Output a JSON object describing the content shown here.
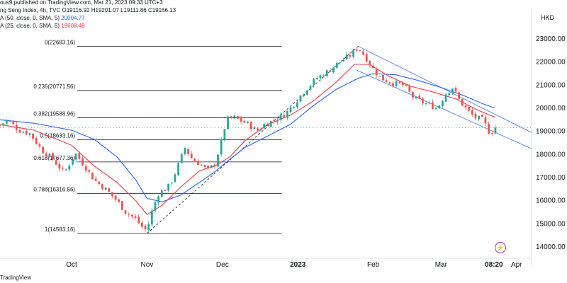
{
  "header": {
    "published": "ous9 published on TradingView.com, Mar 21, 2023 09:33 UTC+3",
    "symbol": "ng Seng Index, 4h, TVC",
    "ohlc": {
      "open": "O19116.92",
      "high": "H19201.07",
      "low": "L19111.86",
      "close": "C19166.13"
    },
    "ma1": {
      "label": "A (50, close, 0, SMA, 5)",
      "value": "20004.77",
      "color": "#2962ff"
    },
    "ma2": {
      "label": "A (25, close, 0, SMA, 5)",
      "value": "19608.48",
      "color": "#f23645"
    },
    "currency": "HKD",
    "brand": "TradingView",
    "bolt_icon": "lightning-bolt-icon"
  },
  "chart_data": {
    "type": "candlestick",
    "y_ticks": [
      "23000.00",
      "22000.00",
      "21000.00",
      "20000.00",
      "19000.00",
      "18000.00",
      "17000.00",
      "16000.00",
      "15000.00",
      "14000.00"
    ],
    "y_values": [
      23000,
      22000,
      21000,
      20000,
      19000,
      18000,
      17000,
      16000,
      15000,
      14000
    ],
    "ylim": [
      13600,
      23400
    ],
    "x_ticks": [
      "Oct",
      "Nov",
      "Dec",
      "2023",
      "Feb",
      "Mar",
      "08:20",
      "Apr"
    ],
    "x_time_index": [
      0.0,
      1.0,
      2.0,
      3.0,
      4.0,
      4.9,
      5.6,
      5.9
    ],
    "xlim_index": [
      -0.95,
      6.1
    ],
    "last_price": 19166.13,
    "fibonacci": [
      {
        "label": "0(22683.16)",
        "value": 22683.16
      },
      {
        "label": "0.236(20771.56)",
        "value": 20771.56
      },
      {
        "label": "0.382(19588.96)",
        "value": 19588.96
      },
      {
        "label": "0.5(18633.16)",
        "value": 18633.16
      },
      {
        "label": "0.618(17677.36)",
        "value": 17677.36
      },
      {
        "label": "0.786(16316.56)",
        "value": 16316.56
      },
      {
        "label": "1(14583.16)",
        "value": 14583.16
      }
    ],
    "fib_x_range_index": [
      0.0,
      2.6
    ],
    "series_close_path": [
      [
        -0.95,
        19250
      ],
      [
        -0.85,
        19500
      ],
      [
        -0.7,
        19050
      ],
      [
        -0.55,
        18900
      ],
      [
        -0.4,
        18200
      ],
      [
        -0.25,
        17800
      ],
      [
        -0.1,
        17200
      ],
      [
        0.05,
        18050
      ],
      [
        0.15,
        17600
      ],
      [
        0.3,
        16900
      ],
      [
        0.45,
        16500
      ],
      [
        0.6,
        16000
      ],
      [
        0.72,
        15500
      ],
      [
        0.85,
        15200
      ],
      [
        0.95,
        14800
      ],
      [
        1.0,
        14700
      ],
      [
        1.05,
        15400
      ],
      [
        1.15,
        16300
      ],
      [
        1.3,
        16650
      ],
      [
        1.4,
        17400
      ],
      [
        1.5,
        18300
      ],
      [
        1.6,
        17800
      ],
      [
        1.7,
        17600
      ],
      [
        1.8,
        17300
      ],
      [
        1.9,
        17600
      ],
      [
        2.0,
        18700
      ],
      [
        2.05,
        19500
      ],
      [
        2.15,
        19600
      ],
      [
        2.25,
        19450
      ],
      [
        2.35,
        19300
      ],
      [
        2.45,
        19000
      ],
      [
        2.55,
        19300
      ],
      [
        2.7,
        19500
      ],
      [
        2.85,
        19800
      ],
      [
        3.0,
        20400
      ],
      [
        3.1,
        20800
      ],
      [
        3.25,
        21300
      ],
      [
        3.4,
        21600
      ],
      [
        3.55,
        22000
      ],
      [
        3.7,
        22300
      ],
      [
        3.8,
        22650
      ],
      [
        3.9,
        22200
      ],
      [
        4.0,
        21700
      ],
      [
        4.1,
        21300
      ],
      [
        4.25,
        21100
      ],
      [
        4.4,
        21000
      ],
      [
        4.55,
        20400
      ],
      [
        4.7,
        20200
      ],
      [
        4.85,
        20000
      ],
      [
        4.95,
        20600
      ],
      [
        5.05,
        20900
      ],
      [
        5.15,
        20300
      ],
      [
        5.25,
        19900
      ],
      [
        5.35,
        19600
      ],
      [
        5.45,
        19500
      ],
      [
        5.55,
        18900
      ],
      [
        5.62,
        19170
      ]
    ],
    "sma50_path": [
      [
        -0.95,
        19500
      ],
      [
        -0.5,
        19350
      ],
      [
        0.0,
        19050
      ],
      [
        0.3,
        18650
      ],
      [
        0.6,
        17900
      ],
      [
        0.85,
        16900
      ],
      [
        1.0,
        16100
      ],
      [
        1.2,
        15950
      ],
      [
        1.45,
        16250
      ],
      [
        1.7,
        16800
      ],
      [
        1.9,
        17250
      ],
      [
        2.1,
        17800
      ],
      [
        2.3,
        18300
      ],
      [
        2.6,
        18800
      ],
      [
        2.9,
        19300
      ],
      [
        3.2,
        20100
      ],
      [
        3.5,
        20800
      ],
      [
        3.8,
        21300
      ],
      [
        4.0,
        21500
      ],
      [
        4.3,
        21450
      ],
      [
        4.6,
        21200
      ],
      [
        4.9,
        20900
      ],
      [
        5.2,
        20550
      ],
      [
        5.45,
        20200
      ],
      [
        5.62,
        20005
      ]
    ],
    "sma25_path": [
      [
        -0.95,
        19300
      ],
      [
        -0.5,
        19050
      ],
      [
        0.0,
        18400
      ],
      [
        0.3,
        17500
      ],
      [
        0.6,
        16800
      ],
      [
        0.85,
        16000
      ],
      [
        1.0,
        15400
      ],
      [
        1.2,
        15800
      ],
      [
        1.45,
        16600
      ],
      [
        1.7,
        17300
      ],
      [
        1.9,
        17500
      ],
      [
        2.1,
        17900
      ],
      [
        2.3,
        18600
      ],
      [
        2.6,
        19300
      ],
      [
        2.9,
        19700
      ],
      [
        3.2,
        20300
      ],
      [
        3.5,
        21100
      ],
      [
        3.75,
        21900
      ],
      [
        3.95,
        21900
      ],
      [
        4.2,
        21400
      ],
      [
        4.5,
        20950
      ],
      [
        4.8,
        20700
      ],
      [
        5.1,
        20400
      ],
      [
        5.4,
        19900
      ],
      [
        5.62,
        19608
      ]
    ],
    "trend_dashed": [
      [
        1.0,
        14583.16
      ],
      [
        3.8,
        22683.16
      ]
    ],
    "channel_upper": [
      [
        3.8,
        22683.16
      ],
      [
        6.1,
        18950
      ]
    ],
    "channel_lower": [
      [
        3.78,
        21650
      ],
      [
        6.1,
        18250
      ]
    ]
  }
}
